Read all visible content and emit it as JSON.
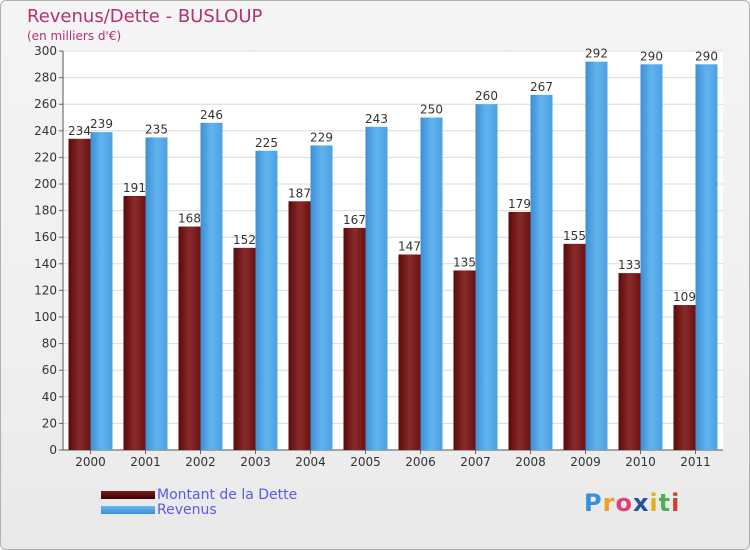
{
  "chart_data": {
    "type": "bar",
    "title": "Revenus/Dette - BUSLOUP",
    "subtitle": "(en milliers d'€)",
    "categories": [
      "2000",
      "2001",
      "2002",
      "2003",
      "2004",
      "2005",
      "2006",
      "2007",
      "2008",
      "2009",
      "2010",
      "2011"
    ],
    "series": [
      {
        "name": "Montant de la Dette",
        "values": [
          234,
          191,
          168,
          152,
          187,
          167,
          147,
          135,
          179,
          155,
          133,
          109
        ],
        "color": "#7a1a1a"
      },
      {
        "name": "Revenus",
        "values": [
          239,
          235,
          246,
          225,
          229,
          243,
          250,
          260,
          267,
          292,
          290,
          290
        ],
        "color": "#4fa3e0"
      }
    ],
    "ylim": [
      0,
      300
    ],
    "yticks": [
      0,
      20,
      40,
      60,
      80,
      100,
      120,
      140,
      160,
      180,
      200,
      220,
      240,
      260,
      280,
      300
    ],
    "grid": true,
    "legend_position": "bottom-left"
  },
  "logo": {
    "text": "Proxiti",
    "letters": [
      "P",
      "r",
      "o",
      "x",
      "i",
      "t",
      "i"
    ],
    "colors": [
      "#3a8fd9",
      "#f0a020",
      "#e0407a",
      "#2a4fa0",
      "#e0b020",
      "#50b050",
      "#d04030"
    ]
  }
}
